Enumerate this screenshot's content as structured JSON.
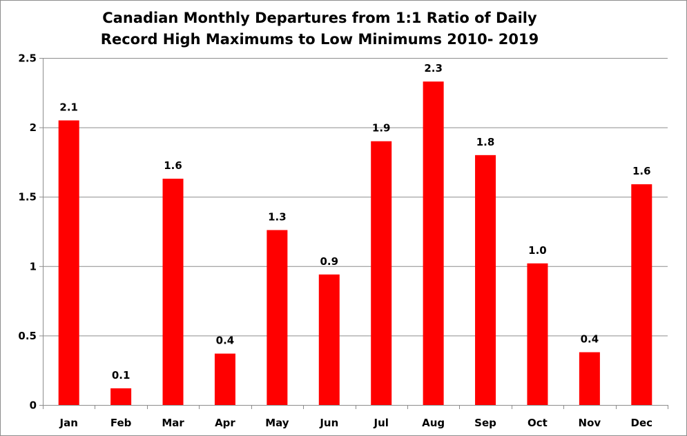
{
  "chart_data": {
    "type": "bar",
    "title_lines": [
      "Canadian Monthly Departures from 1:1 Ratio of Daily",
      "Record High Maximums to Low Minimums 2010- 2019"
    ],
    "xlabel": "",
    "ylabel": "",
    "categories": [
      "Jan",
      "Feb",
      "Mar",
      "Apr",
      "May",
      "Jun",
      "Jul",
      "Aug",
      "Sep",
      "Oct",
      "Nov",
      "Dec"
    ],
    "values": [
      2.05,
      0.12,
      1.63,
      0.37,
      1.26,
      0.94,
      1.9,
      2.33,
      1.8,
      1.02,
      0.38,
      1.59
    ],
    "data_labels": [
      "2.1",
      "0.1",
      "1.6",
      "0.4",
      "1.3",
      "0.9",
      "1.9",
      "2.3",
      "1.8",
      "1.0",
      "0.4",
      "1.6"
    ],
    "ylim": [
      0,
      2.5
    ],
    "yticks": [
      0,
      0.5,
      1,
      1.5,
      2,
      2.5
    ],
    "ytick_labels": [
      "0",
      "0.5",
      "1",
      "1.5",
      "2",
      "2.5"
    ],
    "grid": true,
    "legend": "none",
    "bar_color": "#ff0000",
    "grid_color": "#8c8c8c"
  }
}
